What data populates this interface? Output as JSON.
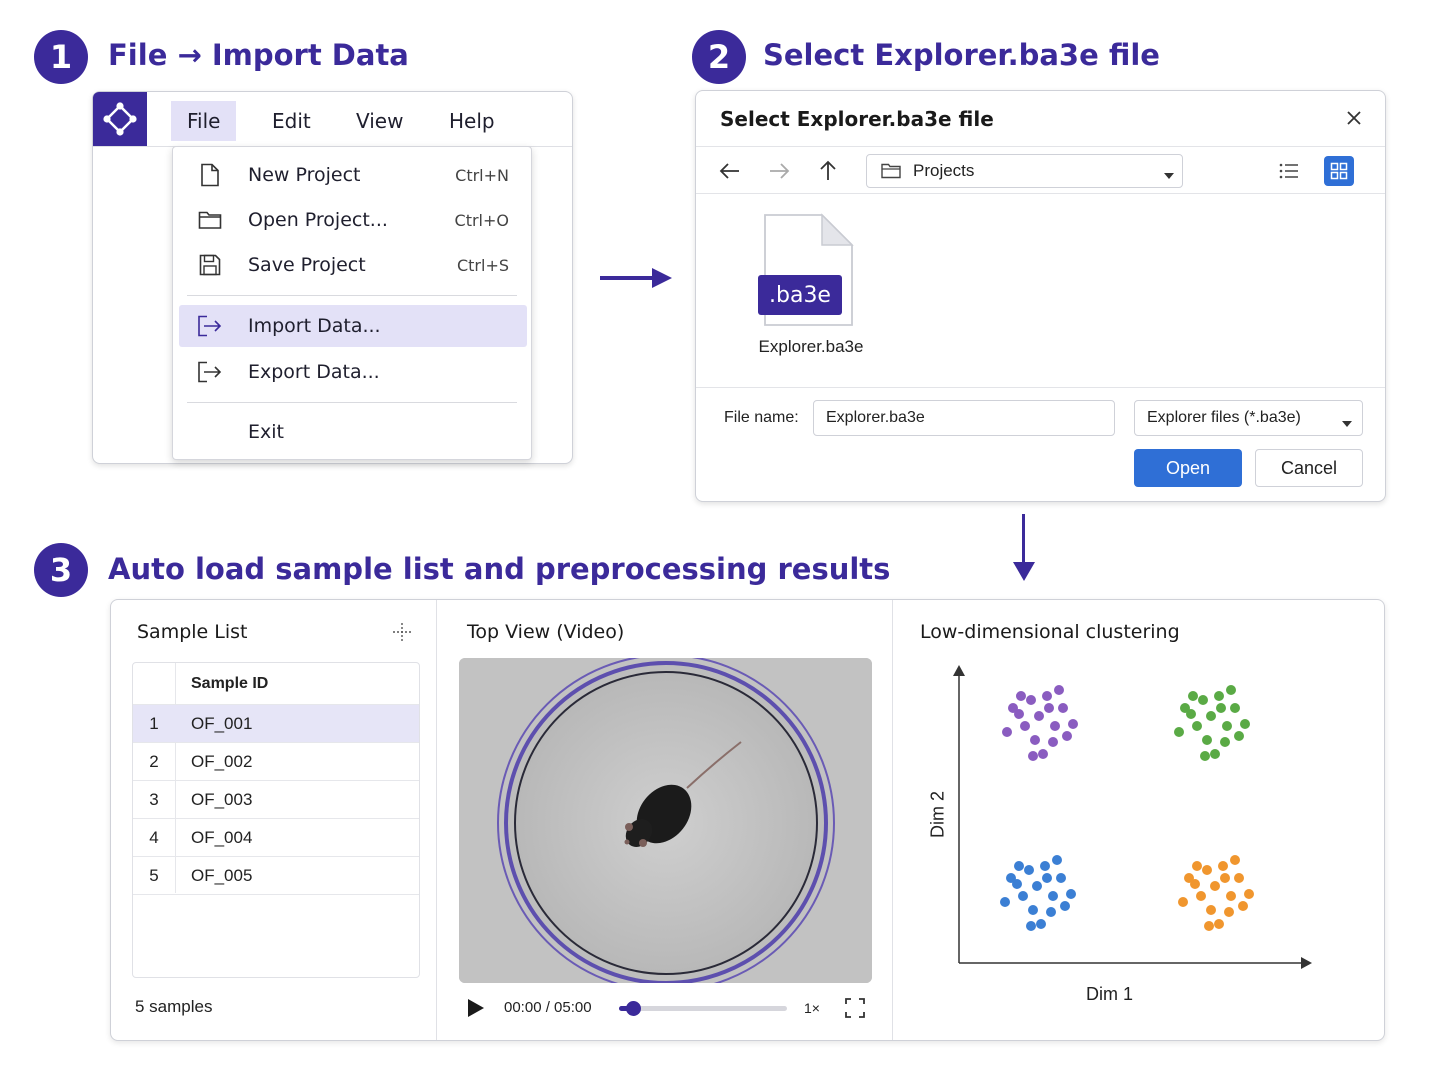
{
  "steps": {
    "s1": {
      "number": "1",
      "title": "File → Import Data"
    },
    "s2": {
      "number": "2",
      "title": "Select Explorer.ba3e file"
    },
    "s3": {
      "number": "3",
      "title": "Auto load sample list and preprocessing results"
    }
  },
  "menubar": {
    "logo_icon": "diamond-nodes-icon",
    "items": [
      "File",
      "Edit",
      "View",
      "Help"
    ]
  },
  "file_menu": {
    "items": [
      {
        "label": "New Project",
        "shortcut": "Ctrl+N",
        "icon": "new-file-icon"
      },
      {
        "label": "Open Project...",
        "shortcut": "Ctrl+O",
        "icon": "folder-icon"
      },
      {
        "label": "Save Project",
        "shortcut": "Ctrl+S",
        "icon": "save-icon"
      },
      {
        "label": "Import Data...",
        "shortcut": "",
        "icon": "import-icon"
      },
      {
        "label": "Export Data...",
        "shortcut": "",
        "icon": "export-icon"
      },
      {
        "label": "Exit",
        "shortcut": "",
        "icon": ""
      }
    ]
  },
  "dialog": {
    "title": "Select Explorer.ba3e file",
    "path": "Projects",
    "file": {
      "badge": ".ba3e",
      "name": "Explorer.ba3e"
    },
    "filename_label": "File name:",
    "filename_value": "Explorer.ba3e",
    "filter": "Explorer files (*.ba3e)",
    "open_label": "Open",
    "cancel_label": "Cancel",
    "accent": "#2f6fd6"
  },
  "sample_list": {
    "title": "Sample List",
    "column": "Sample ID",
    "rows": [
      {
        "n": "1",
        "id": "OF_001"
      },
      {
        "n": "2",
        "id": "OF_002"
      },
      {
        "n": "3",
        "id": "OF_003"
      },
      {
        "n": "4",
        "id": "OF_004"
      },
      {
        "n": "5",
        "id": "OF_005"
      }
    ],
    "footer": "5 samples"
  },
  "video": {
    "title": "Top View (Video)",
    "time": "00:00 / 05:00",
    "speed": "1×",
    "progress": 0.03
  },
  "clustering": {
    "title": "Low-dimensional clustering",
    "xlabel": "Dim 1",
    "ylabel": "Dim 2",
    "colors": {
      "purple": "#8a5cc0",
      "green": "#5aaa45",
      "blue": "#3b7fd4",
      "orange": "#f0962e"
    }
  },
  "colors": {
    "brand": "#3b2a9a",
    "highlight": "#e3e1f7"
  }
}
